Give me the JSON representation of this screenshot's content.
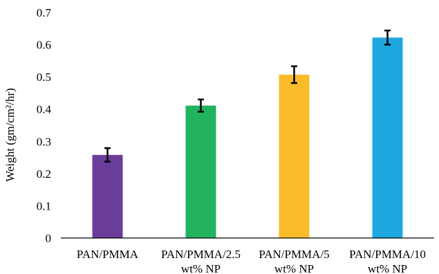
{
  "chart_data": {
    "type": "bar",
    "title": "",
    "xlabel": "",
    "ylabel": "Weight (gm/cm²/hr)",
    "ylim": [
      0,
      0.7
    ],
    "yticks": [
      "0",
      "0.1",
      "0.2",
      "0.3",
      "0.4",
      "0.5",
      "0.6",
      "0.7"
    ],
    "grid": false,
    "categories": [
      [
        "PAN/PMMA"
      ],
      [
        "PAN/PMMA/2.5",
        "wt% NP"
      ],
      [
        "PAN/PMMA/5",
        "wt% NP"
      ],
      [
        "PAN/PMMA/10",
        "wt% NP"
      ]
    ],
    "values": [
      0.258,
      0.411,
      0.507,
      0.622
    ],
    "errors": [
      0.021,
      0.019,
      0.026,
      0.022
    ],
    "colors": [
      "#6a3d9a",
      "#22b35f",
      "#fbbc2c",
      "#1ea7e1"
    ]
  }
}
